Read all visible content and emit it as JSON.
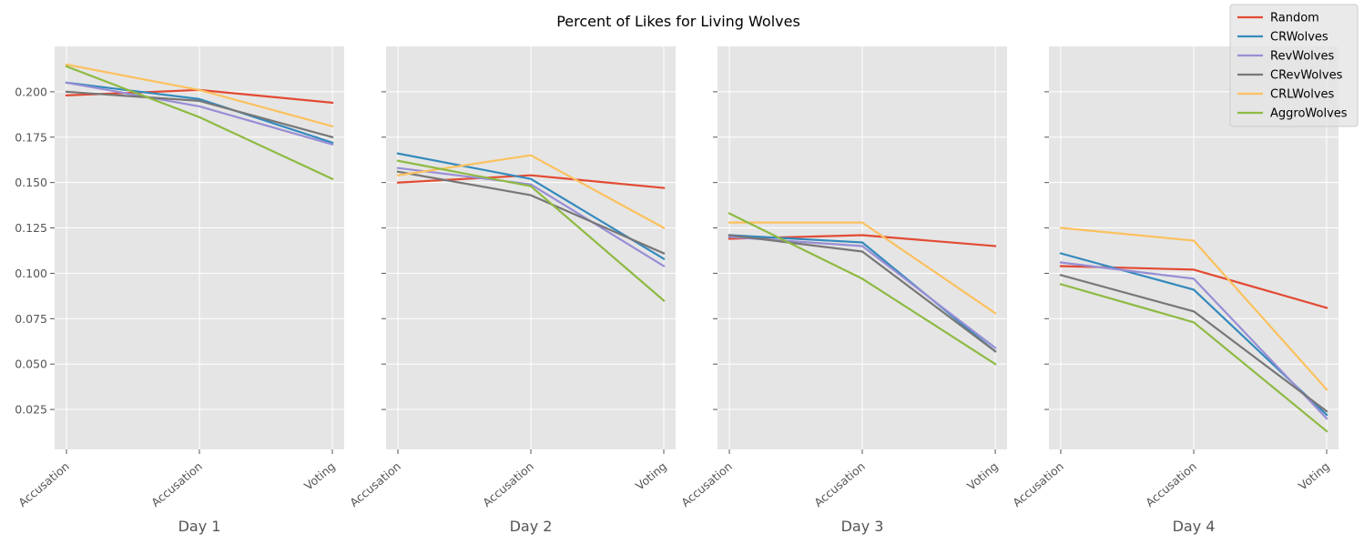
{
  "chart_data": {
    "type": "line",
    "title": "Percent of Likes for Living Wolves",
    "shared_y": true,
    "ylim": [
      0.003,
      0.225
    ],
    "yticks": [
      0.025,
      0.05,
      0.075,
      0.1,
      0.125,
      0.15,
      0.175,
      0.2
    ],
    "ytick_labels": [
      "0.025",
      "0.050",
      "0.075",
      "0.100",
      "0.125",
      "0.150",
      "0.175",
      "0.200"
    ],
    "categories": [
      "Accusation",
      "Accusation",
      "Voting"
    ],
    "grid": true,
    "legend_position": "top-right",
    "series_meta": [
      {
        "name": "Random",
        "color": "#E24A33"
      },
      {
        "name": "CRWolves",
        "color": "#348ABD"
      },
      {
        "name": "RevWolves",
        "color": "#988ED5"
      },
      {
        "name": "CRevWolves",
        "color": "#777777"
      },
      {
        "name": "CRLWolves",
        "color": "#FBC15E"
      },
      {
        "name": "AggroWolves",
        "color": "#8EBA42"
      }
    ],
    "panels": [
      {
        "xlabel": "Day 1",
        "series": [
          {
            "name": "Random",
            "values": [
              0.198,
              0.201,
              0.194
            ]
          },
          {
            "name": "CRWolves",
            "values": [
              0.205,
              0.196,
              0.172
            ]
          },
          {
            "name": "RevWolves",
            "values": [
              0.205,
              0.192,
              0.171
            ]
          },
          {
            "name": "CRevWolves",
            "values": [
              0.2,
              0.195,
              0.175
            ]
          },
          {
            "name": "CRLWolves",
            "values": [
              0.215,
              0.201,
              0.181
            ]
          },
          {
            "name": "AggroWolves",
            "values": [
              0.214,
              0.186,
              0.152
            ]
          }
        ]
      },
      {
        "xlabel": "Day 2",
        "series": [
          {
            "name": "Random",
            "values": [
              0.15,
              0.154,
              0.147
            ]
          },
          {
            "name": "CRWolves",
            "values": [
              0.166,
              0.152,
              0.108
            ]
          },
          {
            "name": "RevWolves",
            "values": [
              0.158,
              0.149,
              0.104
            ]
          },
          {
            "name": "CRevWolves",
            "values": [
              0.156,
              0.143,
              0.111
            ]
          },
          {
            "name": "CRLWolves",
            "values": [
              0.154,
              0.165,
              0.125
            ]
          },
          {
            "name": "AggroWolves",
            "values": [
              0.162,
              0.148,
              0.085
            ]
          }
        ]
      },
      {
        "xlabel": "Day 3",
        "series": [
          {
            "name": "Random",
            "values": [
              0.119,
              0.121,
              0.115
            ]
          },
          {
            "name": "CRWolves",
            "values": [
              0.121,
              0.117,
              0.057
            ]
          },
          {
            "name": "RevWolves",
            "values": [
              0.12,
              0.115,
              0.059
            ]
          },
          {
            "name": "CRevWolves",
            "values": [
              0.121,
              0.112,
              0.057
            ]
          },
          {
            "name": "CRLWolves",
            "values": [
              0.128,
              0.128,
              0.078
            ]
          },
          {
            "name": "AggroWolves",
            "values": [
              0.133,
              0.097,
              0.05
            ]
          }
        ]
      },
      {
        "xlabel": "Day 4",
        "series": [
          {
            "name": "Random",
            "values": [
              0.104,
              0.102,
              0.081
            ]
          },
          {
            "name": "CRWolves",
            "values": [
              0.111,
              0.091,
              0.022
            ]
          },
          {
            "name": "RevWolves",
            "values": [
              0.106,
              0.097,
              0.02
            ]
          },
          {
            "name": "CRevWolves",
            "values": [
              0.099,
              0.079,
              0.024
            ]
          },
          {
            "name": "CRLWolves",
            "values": [
              0.125,
              0.118,
              0.036
            ]
          },
          {
            "name": "AggroWolves",
            "values": [
              0.094,
              0.073,
              0.013
            ]
          }
        ]
      }
    ]
  }
}
